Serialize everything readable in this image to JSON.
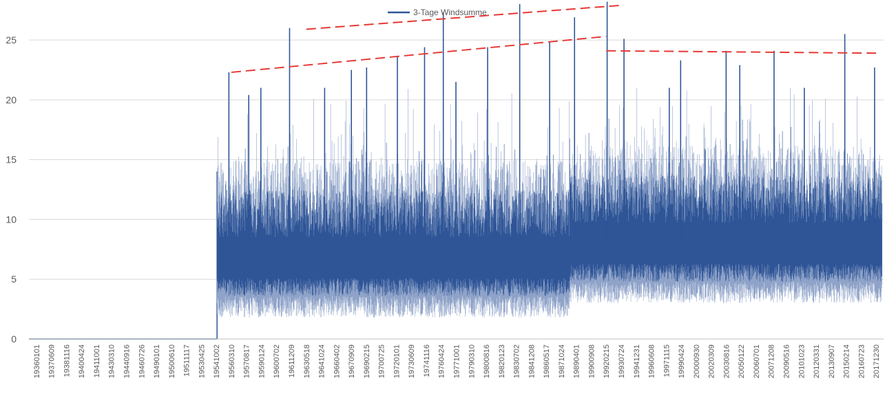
{
  "chart_data": {
    "type": "line",
    "title": "",
    "xlabel": "",
    "ylabel": "",
    "ylim": [
      0,
      28
    ],
    "yticks": [
      0,
      5,
      10,
      15,
      20,
      25
    ],
    "grid": "horizontal",
    "legend_position": "top-center",
    "categories": [
      "19360101",
      "19370609",
      "19381116",
      "19400424",
      "19411001",
      "19430310",
      "19440916",
      "19460726",
      "19490101",
      "19500610",
      "19511117",
      "19530425",
      "19541002",
      "19560310",
      "19570817",
      "19590124",
      "19600702",
      "19611209",
      "19630518",
      "19641024",
      "19660402",
      "19670909",
      "19690215",
      "19700725",
      "19720101",
      "19730609",
      "19741116",
      "19760424",
      "19771001",
      "19790310",
      "19800816",
      "19820123",
      "19830702",
      "19841208",
      "19860517",
      "19871024",
      "19890401",
      "19900908",
      "19920215",
      "19930724",
      "19941231",
      "19960608",
      "19971115",
      "19990424",
      "20000930",
      "20020309",
      "20030816",
      "20050122",
      "20060701",
      "20071208",
      "20090516",
      "20101023",
      "20120331",
      "20130907",
      "20150214",
      "20160723",
      "20171230"
    ],
    "series": [
      {
        "name": "3-Tage Windsumme",
        "color": "#2f5597",
        "light_color": "#8fa3c9",
        "start_value": 0,
        "data_start_category": "19541002",
        "typical_range": [
          3,
          13
        ],
        "peaks": [
          {
            "x": "19560310",
            "y": 22.3
          },
          {
            "x": "19570817",
            "y": 20.4
          },
          {
            "x": "19590124",
            "y": 21.0
          },
          {
            "x": "19611209",
            "y": 26.0
          },
          {
            "x": "19641024",
            "y": 21.0
          },
          {
            "x": "19670909",
            "y": 22.5
          },
          {
            "x": "19690215",
            "y": 22.7
          },
          {
            "x": "19720101",
            "y": 23.6
          },
          {
            "x": "19741116",
            "y": 24.4
          },
          {
            "x": "19760424",
            "y": 27.3
          },
          {
            "x": "19771001",
            "y": 21.5
          },
          {
            "x": "19800816",
            "y": 24.4
          },
          {
            "x": "19830702",
            "y": 28.0
          },
          {
            "x": "19860517",
            "y": 24.8
          },
          {
            "x": "19890401",
            "y": 26.9
          },
          {
            "x": "19920215",
            "y": 28.2
          },
          {
            "x": "19930724",
            "y": 25.1
          },
          {
            "x": "19971115",
            "y": 21.0
          },
          {
            "x": "19990424",
            "y": 23.3
          },
          {
            "x": "20030816",
            "y": 24.1
          },
          {
            "x": "20050122",
            "y": 22.9
          },
          {
            "x": "20071208",
            "y": 24.1
          },
          {
            "x": "20101023",
            "y": 21.0
          },
          {
            "x": "20150214",
            "y": 25.5
          },
          {
            "x": "20171230",
            "y": 22.7
          }
        ]
      }
    ],
    "trend_lines": [
      {
        "color": "#e53935",
        "style": "dashed",
        "from": {
          "x": "19560310",
          "y": 22.3
        },
        "to": {
          "x": "19920215",
          "y": 25.3
        }
      },
      {
        "color": "#e53935",
        "style": "dashed",
        "from": {
          "x": "19630518",
          "y": 25.9
        },
        "to": {
          "x": "19930724",
          "y": 27.9
        }
      },
      {
        "color": "#e53935",
        "style": "dashed",
        "from": {
          "x": "19920215",
          "y": 24.1
        },
        "to": {
          "x": "20171230",
          "y": 23.9
        }
      }
    ]
  }
}
